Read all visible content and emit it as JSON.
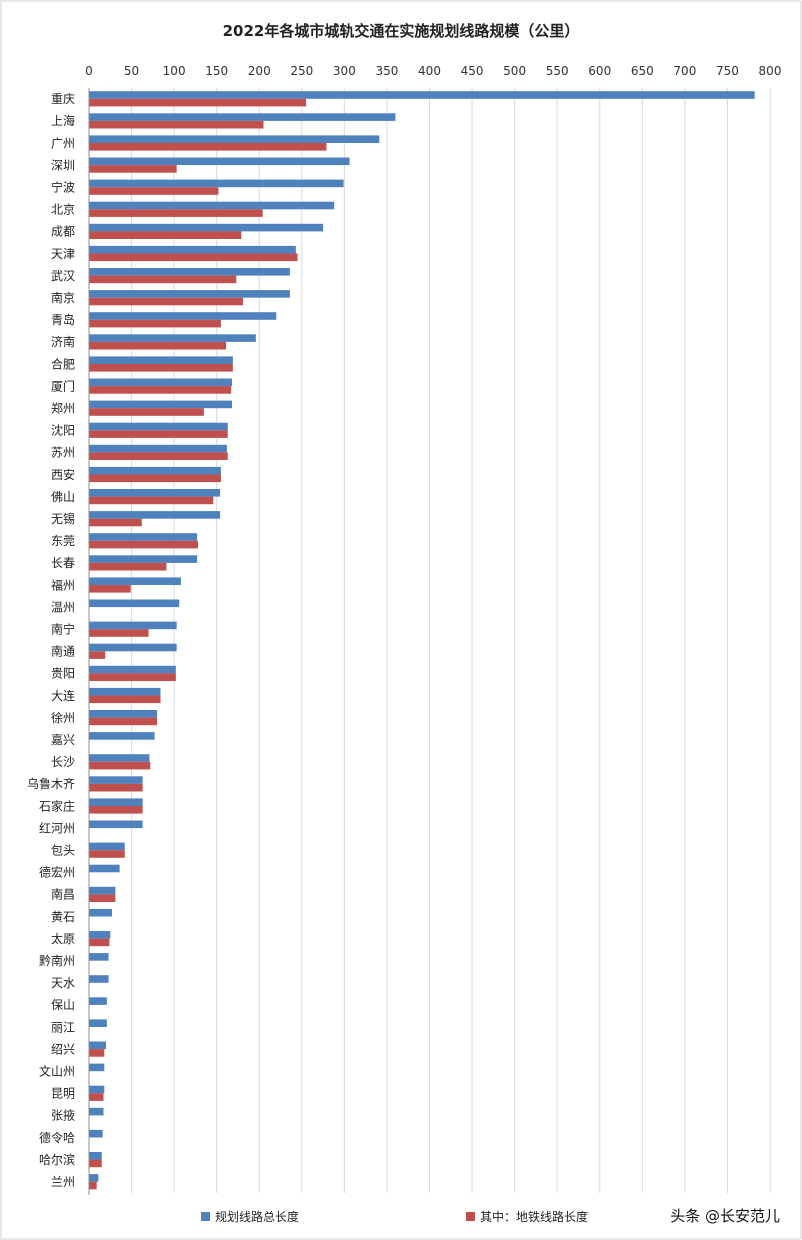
{
  "chart_data": {
    "type": "bar",
    "orientation": "horizontal",
    "title": "2022年各城市城轨交通在实施规划线路规模（公里）",
    "xlim": [
      0,
      800
    ],
    "x_ticks": [
      "0",
      "50",
      "100",
      "150",
      "200",
      "250",
      "300",
      "350",
      "400",
      "450",
      "500",
      "550",
      "600",
      "650",
      "700",
      "750",
      "800"
    ],
    "grid": true,
    "legend_position": "bottom",
    "categories": [
      "重庆",
      "上海",
      "广州",
      "深圳",
      "宁波",
      "北京",
      "成都",
      "天津",
      "武汉",
      "南京",
      "青岛",
      "济南",
      "合肥",
      "厦门",
      "郑州",
      "沈阳",
      "苏州",
      "西安",
      "佛山",
      "无锡",
      "东莞",
      "长春",
      "福州",
      "温州",
      "南宁",
      "南通",
      "贵阳",
      "大连",
      "徐州",
      "嘉兴",
      "长沙",
      "乌鲁木齐",
      "石家庄",
      "红河州",
      "包头",
      "德宏州",
      "南昌",
      "黄石",
      "太原",
      "黔南州",
      "天水",
      "保山",
      "丽江",
      "绍兴",
      "文山州",
      "昆明",
      "张掖",
      "德令哈",
      "哈尔滨",
      "兰州"
    ],
    "series": [
      {
        "name": "规划线路总长度",
        "color": "#4f81bd",
        "values": [
          782,
          360,
          341,
          306,
          299,
          288,
          275,
          243,
          236,
          236,
          220,
          196,
          169,
          168,
          168,
          163,
          162,
          155,
          154,
          154,
          127,
          127,
          108,
          106,
          103,
          103,
          102,
          84,
          80,
          77,
          71,
          63,
          63,
          63,
          42,
          36,
          31,
          27,
          25,
          23,
          23,
          21,
          21,
          20,
          18,
          18,
          17,
          16,
          15,
          11
        ]
      },
      {
        "name": "其中：地铁线路长度",
        "color": "#c0504d",
        "values": [
          255,
          205,
          279,
          103,
          152,
          204,
          179,
          245,
          173,
          181,
          155,
          161,
          169,
          167,
          135,
          163,
          163,
          155,
          146,
          62,
          128,
          91,
          49,
          0,
          70,
          19,
          102,
          84,
          80,
          0,
          72,
          63,
          63,
          0,
          42,
          0,
          31,
          0,
          24,
          0,
          0,
          0,
          0,
          18,
          0,
          17,
          0,
          0,
          15,
          9
        ]
      }
    ]
  },
  "credit": {
    "text": "头条 @长安范儿"
  }
}
